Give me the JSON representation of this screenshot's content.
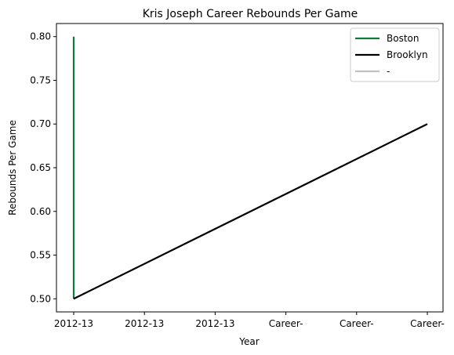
{
  "chart_data": {
    "type": "line",
    "title": "Kris Joseph Career Rebounds Per Game",
    "xlabel": "Year",
    "ylabel": "Rebounds Per Game",
    "x_tick_labels": [
      "2012-13",
      "2012-13",
      "2012-13",
      "Career-",
      "Career-",
      "Career-"
    ],
    "ylim": [
      0.485,
      0.815
    ],
    "y_ticks": [
      0.5,
      0.55,
      0.6,
      0.65,
      0.7,
      0.75,
      0.8
    ],
    "grid": false,
    "legend_position": "top-right",
    "series": [
      {
        "name": "Boston",
        "color": "#0b7a3b",
        "points": [
          [
            0,
            0.8
          ],
          [
            0,
            0.5
          ]
        ]
      },
      {
        "name": "Brooklyn",
        "color": "#000000",
        "points": [
          [
            0,
            0.5
          ],
          [
            5,
            0.7
          ]
        ]
      },
      {
        "name": "-",
        "color": "#c0c0c0",
        "points": []
      }
    ]
  }
}
